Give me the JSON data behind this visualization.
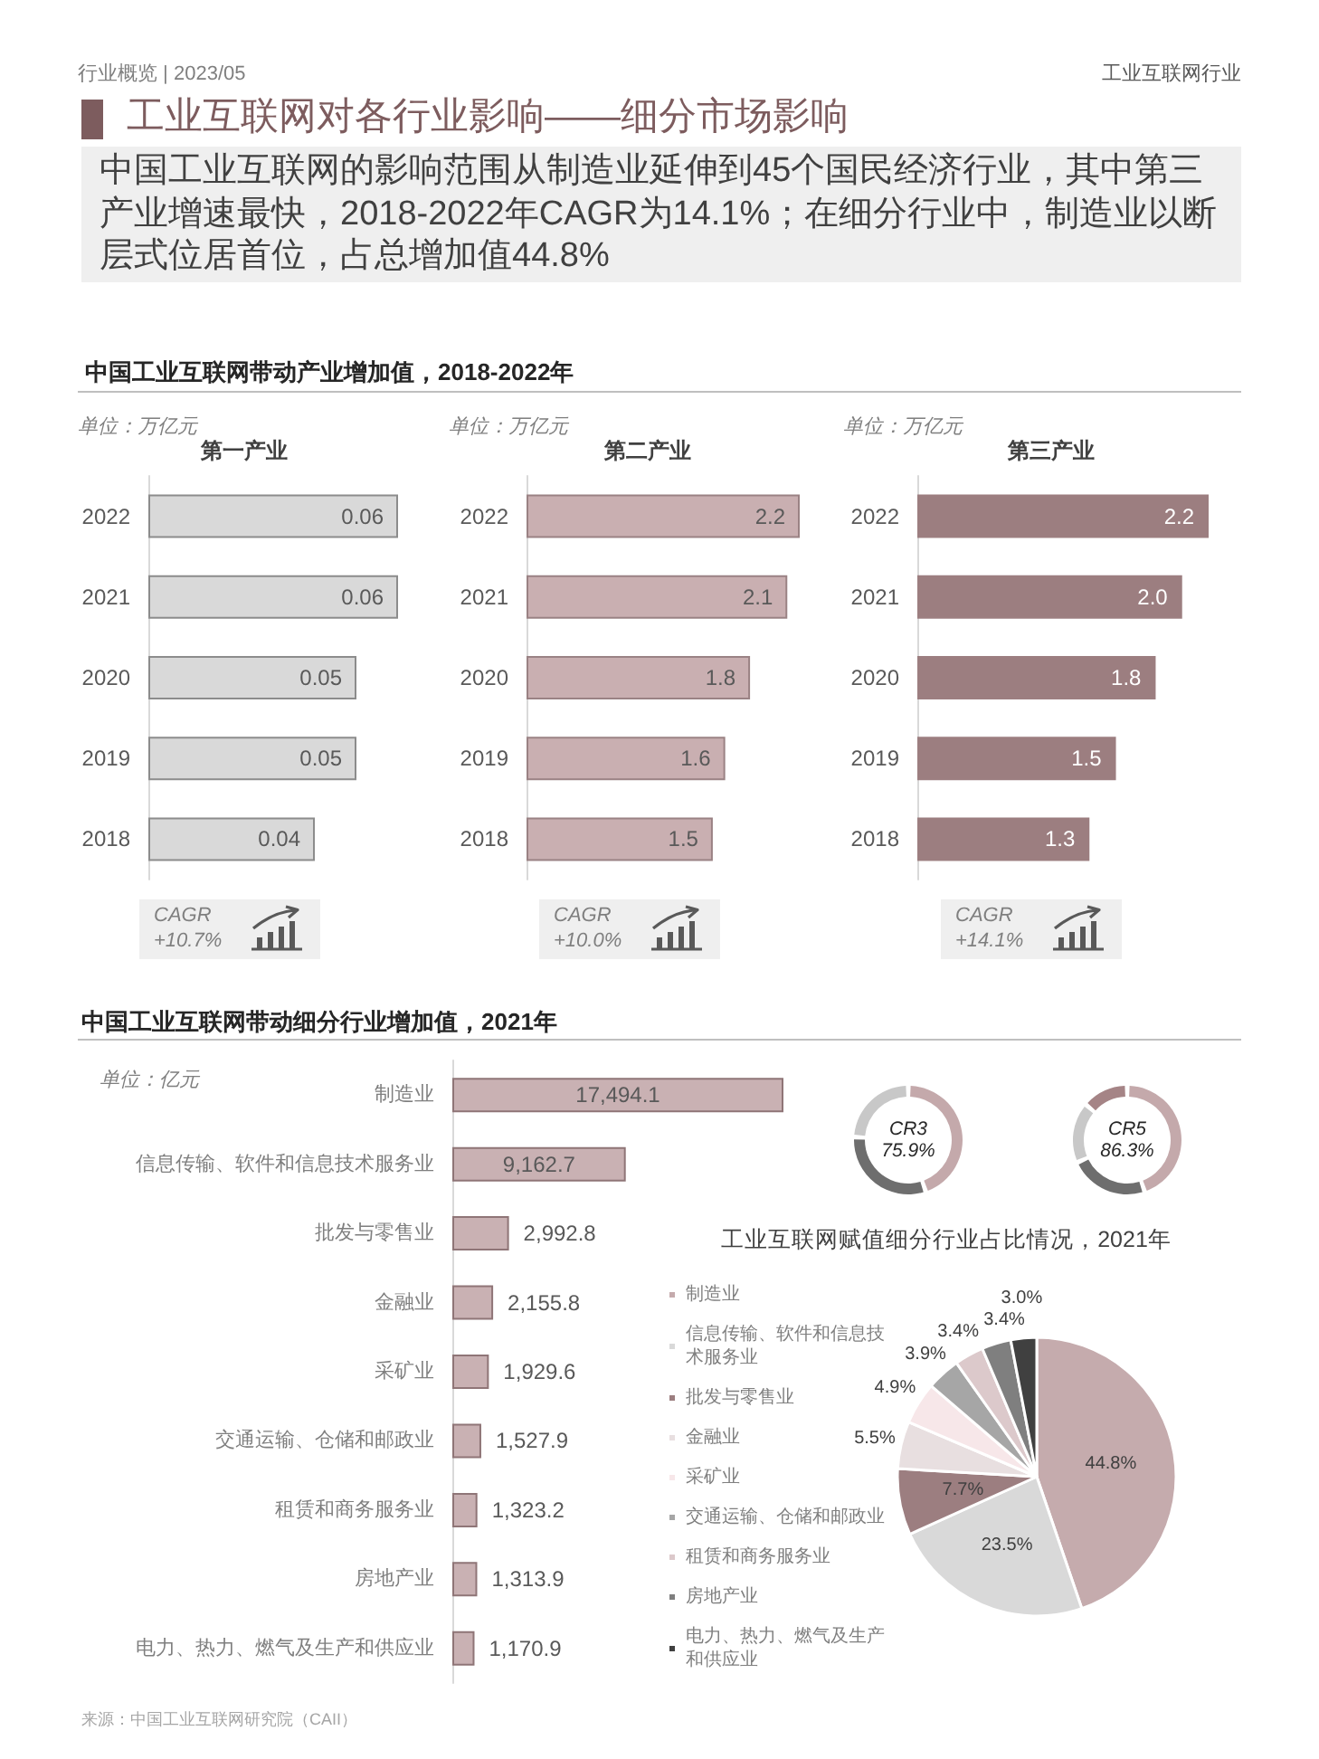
{
  "chart_data": [
    {
      "type": "other",
      "title": "工业互联网对各行业影响——细分市场影响",
      "subtitle": "中国工业互联网的影响范围从制造业延伸到45个国民经济行业，其中第三产业增速最快，2018-2022年CAGR为14.1%；在细分行业中，制造业以断层式位居首位，占总增加值44.8%",
      "annotations": [
        "行业概览 | 2023/05",
        "工业互联网行业",
        "中国工业互联网带动产业增加值，2018-2022年"
      ]
    },
    {
      "type": "bar",
      "orientation": "horizontal",
      "title": "第一产业",
      "categories": [
        "2022",
        "2021",
        "2020",
        "2019",
        "2018"
      ],
      "values": [
        0.06,
        0.06,
        0.05,
        0.05,
        0.04
      ],
      "value_labels": [
        "0.06",
        "0.06",
        "0.05",
        "0.05",
        "0.04"
      ],
      "color": "#d9d9d9",
      "tick_labels": "y",
      "grid": false,
      "annotations": [
        "单位：万亿元",
        "CAGR +10.7%"
      ]
    },
    {
      "type": "bar",
      "orientation": "horizontal",
      "title": "第二产业",
      "categories": [
        "2022",
        "2021",
        "2020",
        "2019",
        "2018"
      ],
      "values": [
        2.2,
        2.1,
        1.8,
        1.6,
        1.5
      ],
      "value_labels": [
        "2.2",
        "2.1",
        "1.8",
        "1.6",
        "1.5"
      ],
      "color": "#c9afb1",
      "tick_labels": "y",
      "grid": false,
      "annotations": [
        "单位：万亿元",
        "CAGR +10.0%"
      ]
    },
    {
      "type": "bar",
      "orientation": "horizontal",
      "title": "第三产业",
      "categories": [
        "2022",
        "2021",
        "2020",
        "2019",
        "2018"
      ],
      "values": [
        2.2,
        2.0,
        1.8,
        1.5,
        1.3
      ],
      "value_labels": [
        "2.2",
        "2.0",
        "1.8",
        "1.5",
        "1.3"
      ],
      "color": "#9c7e80",
      "tick_labels": "y",
      "grid": false,
      "annotations": [
        "单位：万亿元",
        "CAGR +14.1%"
      ]
    },
    {
      "type": "bar",
      "orientation": "horizontal",
      "title": "中国工业互联网带动细分行业增加值，2021年",
      "categories": [
        "制造业",
        "信息传输、软件和信息技术服务业",
        "批发与零售业",
        "金融业",
        "采矿业",
        "交通运输、仓储和邮政业",
        "租赁和商务服务业",
        "房地产业",
        "电力、热力、燃气及生产和供应业"
      ],
      "values": [
        17494.1,
        9162.7,
        2992.8,
        2155.8,
        1929.6,
        1527.9,
        1323.2,
        1313.9,
        1170.9
      ],
      "value_labels": [
        "17,494.1",
        "9,162.7",
        "2,992.8",
        "2,155.8",
        "1,929.6",
        "1,527.9",
        "1,323.2",
        "1,313.9",
        "1,170.9"
      ],
      "color": "#c9b1b3",
      "tick_labels": "y",
      "grid": false,
      "annotations": [
        "单位：亿元",
        "来源：中国工业互联网研究院（CAII）"
      ]
    },
    {
      "type": "donut",
      "title": "CR3",
      "categories": [
        null,
        null,
        null
      ],
      "values": [
        44.8,
        31.1,
        24.1
      ],
      "colors": [
        "#c4a9ab",
        "#6e6e6e",
        "#c8c8c8"
      ],
      "annotations": [
        "75.9%"
      ]
    },
    {
      "type": "donut",
      "title": "CR5",
      "categories": [
        null,
        null,
        null,
        null
      ],
      "values": [
        44.8,
        23.5,
        18.0,
        13.7
      ],
      "colors": [
        "#c4a9ab",
        "#6e6e6e",
        "#c8c8c8",
        "#a58486"
      ],
      "annotations": [
        "86.3%"
      ]
    },
    {
      "type": "pie",
      "title": "工业互联网赋值细分行业占比情况，2021年",
      "categories": [
        "制造业",
        "信息传输、软件和信息技术服务业",
        "批发与零售业",
        "金融业",
        "采矿业",
        "交通运输、仓储和邮政业",
        "租赁和商务服务业",
        "房地产业",
        "电力、热力、燃气及生产和供应业"
      ],
      "values": [
        44.8,
        23.5,
        7.7,
        5.5,
        4.9,
        3.9,
        3.4,
        3.4,
        3.0
      ],
      "colors": [
        "#c5abad",
        "#d9d9d9",
        "#9c7e80",
        "#e8dfe0",
        "#f7e7e9",
        "#a6a6a6",
        "#dcc9cb",
        "#7f7f7f",
        "#404040"
      ],
      "value_labels": [
        "44.8%",
        "23.5%",
        "7.7%",
        "5.5%",
        "4.9%",
        "3.9%",
        "3.4%",
        "3.4%",
        "3.0%"
      ],
      "legend": "left"
    }
  ]
}
